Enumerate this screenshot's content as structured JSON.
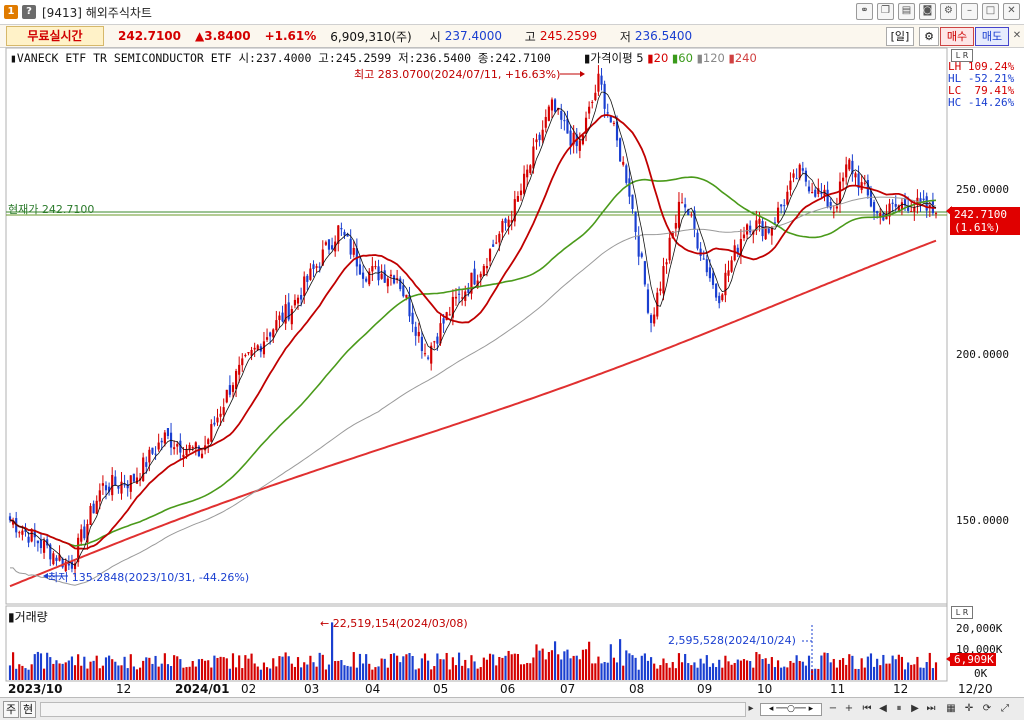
{
  "window": {
    "btn1": "1",
    "btn2": "?",
    "title": "[9413] 해외주식차트"
  },
  "quote": {
    "mode": "무료실시간",
    "price": "242.7100",
    "change": "▲3.8400",
    "change_pct": "+1.61%",
    "volume": "6,909,310(주)",
    "open_label": "시",
    "open": "237.4000",
    "high_label": "고",
    "high": "245.2599",
    "low_label": "저",
    "low": "236.5400",
    "period_btn": "[일]",
    "buy_btn": "매수",
    "sell_btn": "매도"
  },
  "chart_header": {
    "text": "▮VANECK ETF TR SEMICONDUCTOR ETF 시:237.4000 고:245.2599 저:236.5400 종:242.7100",
    "indicator_label": "▮가격이평 5",
    "ma20": "20",
    "ma60": "60",
    "ma120": "120",
    "ma240": "240"
  },
  "annotations": {
    "high": "최고 283.0700(2024/07/11, +16.63%)",
    "low": "최저 135.2848(2023/10/31, -44.26%)",
    "vol_max": "22,519,154(2024/03/08)",
    "vol_last": "2,595,528(2024/10/24)",
    "hline": "현재가 242.7100"
  },
  "stats": {
    "lr": "L R",
    "lh": "LH 109.24%",
    "hl": "HL -52.21%",
    "lc": "LC  79.41%",
    "hc": "HC -14.26%"
  },
  "price_axis": [
    "250.0000",
    "200.0000",
    "150.0000"
  ],
  "price_tag": {
    "line1": "242.7100",
    "line2": "(1.61%)"
  },
  "volume_panel": {
    "label": "▮거래량",
    "axis": [
      "20,000K",
      "10,000K",
      "0K"
    ],
    "tag": "6,909K"
  },
  "dates": [
    {
      "label": "2023/10",
      "bold": true
    },
    {
      "label": "12",
      "bold": false
    },
    {
      "label": "2024/01",
      "bold": true
    },
    {
      "label": "02",
      "bold": false
    },
    {
      "label": "03",
      "bold": false
    },
    {
      "label": "04",
      "bold": false
    },
    {
      "label": "05",
      "bold": false
    },
    {
      "label": "06",
      "bold": false
    },
    {
      "label": "07",
      "bold": false
    },
    {
      "label": "08",
      "bold": false
    },
    {
      "label": "09",
      "bold": false
    },
    {
      "label": "10",
      "bold": false
    },
    {
      "label": "11",
      "bold": false
    },
    {
      "label": "12",
      "bold": false
    }
  ],
  "date_right": "12/20",
  "bottom": {
    "btn1": "주",
    "btn2": "현"
  },
  "colors": {
    "up": "#d40000",
    "down": "#1a3fd0",
    "ma5": "#000000",
    "ma20": "#c00000",
    "ma60": "#4a9a1a",
    "ma120": "#9a9a9a",
    "ma240": "#e03030"
  },
  "chart_data": {
    "type": "line",
    "ylim": [
      125,
      290
    ],
    "close_points": [
      [
        "2023-10-02",
        150
      ],
      [
        "2023-10-31",
        136
      ],
      [
        "2023-11-15",
        160
      ],
      [
        "2023-11-30",
        162
      ],
      [
        "2023-12-15",
        175
      ],
      [
        "2024-01-02",
        170
      ],
      [
        "2024-01-17",
        192
      ],
      [
        "2024-02-01",
        205
      ],
      [
        "2024-02-15",
        215
      ],
      [
        "2024-03-08",
        238
      ],
      [
        "2024-03-20",
        225
      ],
      [
        "2024-04-05",
        224
      ],
      [
        "2024-04-19",
        200
      ],
      [
        "2024-05-02",
        215
      ],
      [
        "2024-05-15",
        226
      ],
      [
        "2024-06-01",
        245
      ],
      [
        "2024-06-18",
        275
      ],
      [
        "2024-07-01",
        262
      ],
      [
        "2024-07-11",
        283
      ],
      [
        "2024-07-25",
        252
      ],
      [
        "2024-08-05",
        210
      ],
      [
        "2024-08-20",
        248
      ],
      [
        "2024-09-06",
        217
      ],
      [
        "2024-09-20",
        240
      ],
      [
        "2024-10-01",
        238
      ],
      [
        "2024-10-15",
        255
      ],
      [
        "2024-11-01",
        244
      ],
      [
        "2024-11-08",
        258
      ],
      [
        "2024-11-22",
        242
      ],
      [
        "2024-12-06",
        246
      ],
      [
        "2024-12-20",
        242.71
      ]
    ]
  }
}
